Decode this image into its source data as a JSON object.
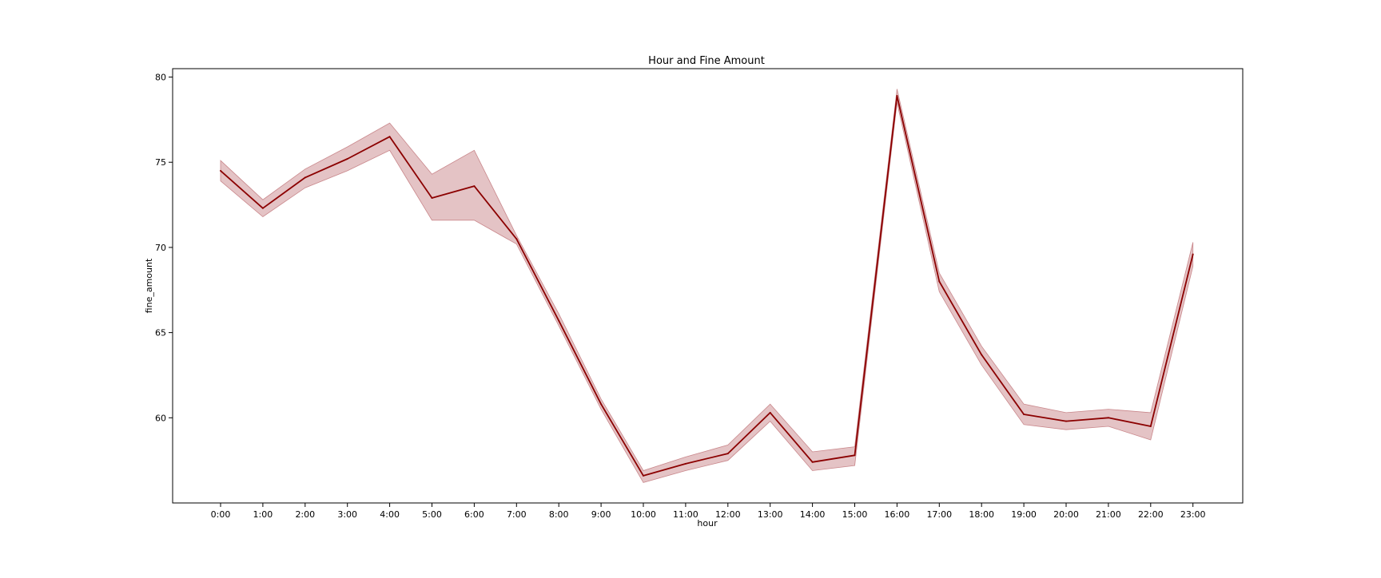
{
  "chart_data": {
    "type": "line",
    "title": "Hour and Fine Amount",
    "xlabel": "hour",
    "ylabel": "fine_amount",
    "categories": [
      "0:00",
      "1:00",
      "2:00",
      "3:00",
      "4:00",
      "5:00",
      "6:00",
      "7:00",
      "8:00",
      "9:00",
      "10:00",
      "11:00",
      "12:00",
      "13:00",
      "14:00",
      "15:00",
      "16:00",
      "17:00",
      "18:00",
      "19:00",
      "20:00",
      "21:00",
      "22:00",
      "23:00"
    ],
    "yticks": [
      60,
      65,
      70,
      75,
      80
    ],
    "ylim": [
      55,
      80.4
    ],
    "grid": false,
    "legend": "none",
    "series": [
      {
        "values": [
          74.5,
          72.3,
          74.1,
          75.2,
          76.5,
          72.9,
          73.6,
          70.5,
          65.7,
          60.8,
          56.6,
          57.3,
          57.9,
          60.3,
          57.4,
          57.8,
          78.9,
          68.0,
          63.7,
          60.2,
          59.8,
          60.0,
          59.5,
          69.6
        ],
        "ci_lower": [
          73.9,
          71.8,
          73.5,
          74.5,
          75.7,
          71.6,
          71.6,
          70.2,
          65.4,
          60.5,
          56.2,
          56.9,
          57.5,
          59.8,
          56.9,
          57.2,
          78.5,
          67.4,
          63.1,
          59.6,
          59.3,
          59.5,
          58.7,
          68.9
        ],
        "ci_upper": [
          75.1,
          72.8,
          74.6,
          75.9,
          77.3,
          74.3,
          75.7,
          70.7,
          66.1,
          61.1,
          56.9,
          57.7,
          58.4,
          60.8,
          58.0,
          58.3,
          79.3,
          68.5,
          64.2,
          60.8,
          60.3,
          60.5,
          60.3,
          70.3
        ],
        "color": "#8b0000",
        "band_color": "#c9878b"
      }
    ]
  }
}
